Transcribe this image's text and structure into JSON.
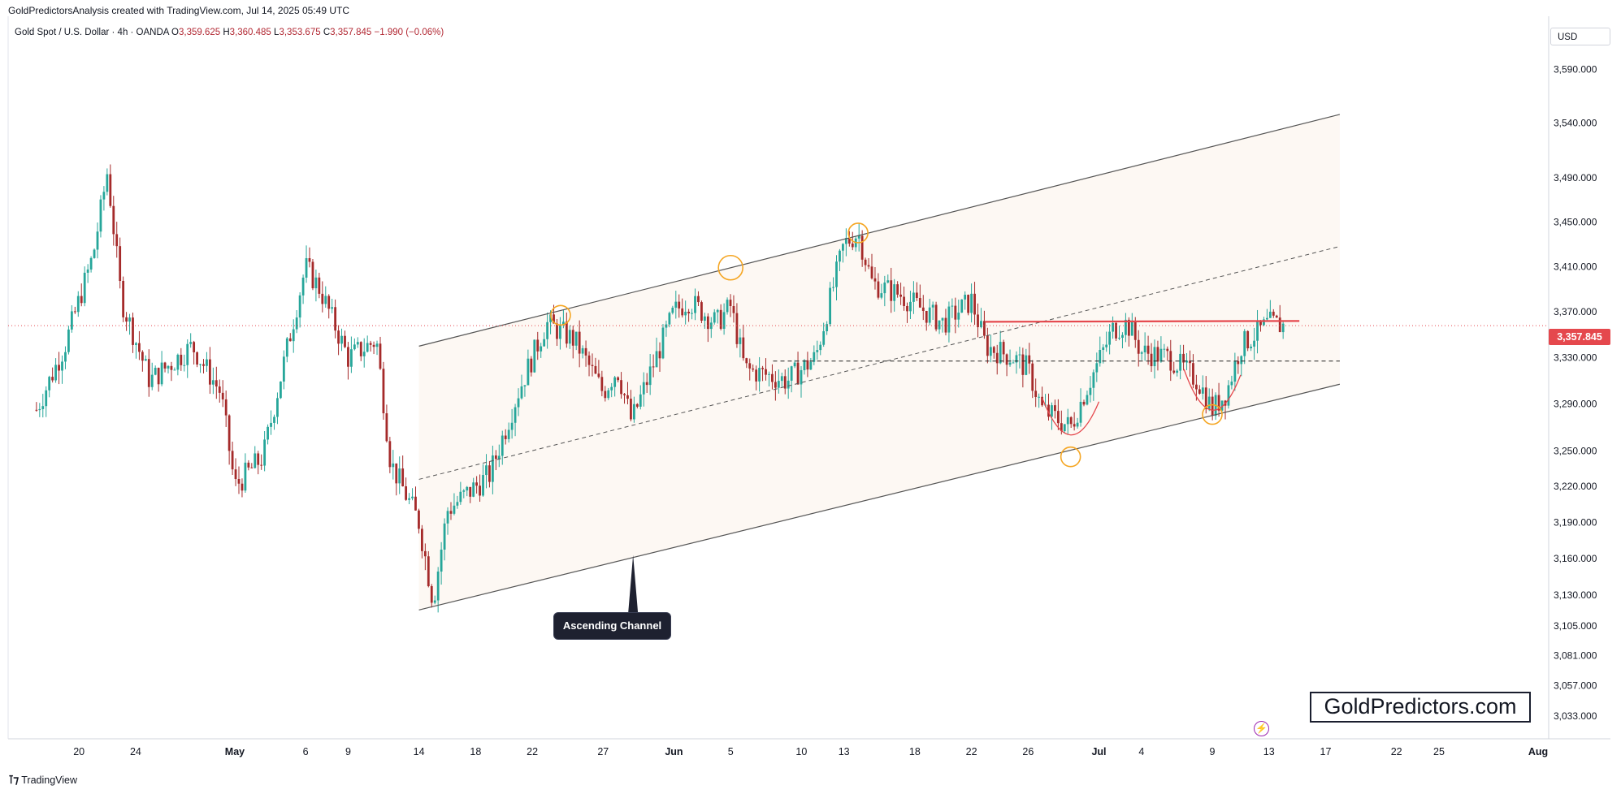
{
  "header": {
    "credit": "GoldPredictorsAnalysis created with TradingView.com, Jul 14, 2025 05:49 UTC",
    "symbol": "Gold Spot / U.S. Dollar · 4h · OANDA",
    "open_label": "O",
    "open": "3,359.625",
    "high_label": "H",
    "high": "3,360.485",
    "low_label": "L",
    "low": "3,353.675",
    "close_label": "C",
    "close": "3,357.845",
    "change": "−1.990 (−0.06%)"
  },
  "currency_button": "USD",
  "last_price": "3,357.845",
  "annotation": {
    "label": "Ascending Channel"
  },
  "watermark": "GoldPredictors.com",
  "brand": "TradingView",
  "colors": {
    "up": "#26a69a",
    "down": "#a52a2a",
    "wick": "#333333",
    "channel": "#555555",
    "circle": "#f5a623",
    "resistance": "#e5484d",
    "cup": "#e5484d",
    "last_price_line": "#e5484d"
  },
  "chart_data": {
    "type": "candlestick",
    "title": "Gold Spot / U.S. Dollar · 4h · OANDA",
    "x_tick_labels": [
      "20",
      "24",
      "May",
      "6",
      "9",
      "14",
      "18",
      "22",
      "27",
      "Jun",
      "5",
      "10",
      "13",
      "18",
      "22",
      "26",
      "Jul",
      "4",
      "9",
      "13",
      "17",
      "22",
      "25",
      "Aug"
    ],
    "y_tick_labels": [
      "3,590.000",
      "3,540.000",
      "3,490.000",
      "3,450.000",
      "3,410.000",
      "3,370.000",
      "3,330.000",
      "3,290.000",
      "3,250.000",
      "3,220.000",
      "3,190.000",
      "3,160.000",
      "3,130.000",
      "3,105.000",
      "3,081.000",
      "3,057.000",
      "3,033.000"
    ],
    "ylim": [
      3015,
      3640
    ],
    "y_scale": "log",
    "last_price": 3357.845,
    "close_path": [
      [
        "Apr 17",
        3285
      ],
      [
        "Apr 19",
        3340
      ],
      [
        "Apr 21",
        3420
      ],
      [
        "Apr 22",
        3495
      ],
      [
        "Apr 23",
        3380
      ],
      [
        "Apr 25",
        3310
      ],
      [
        "Apr 28",
        3340
      ],
      [
        "Apr 30",
        3300
      ],
      [
        "May 1",
        3220
      ],
      [
        "May 3",
        3245
      ],
      [
        "May 6",
        3410
      ],
      [
        "May 7",
        3390
      ],
      [
        "May 9",
        3330
      ],
      [
        "May 11",
        3345
      ],
      [
        "May 12",
        3240
      ],
      [
        "May 14",
        3190
      ],
      [
        "May 15",
        3125
      ],
      [
        "May 16",
        3200
      ],
      [
        "May 19",
        3230
      ],
      [
        "May 21",
        3300
      ],
      [
        "May 23",
        3360
      ],
      [
        "May 25",
        3345
      ],
      [
        "May 27",
        3300
      ],
      [
        "May 28",
        3320
      ],
      [
        "May 29",
        3275
      ],
      [
        "Jun 1",
        3370
      ],
      [
        "Jun 2",
        3380
      ],
      [
        "Jun 4",
        3360
      ],
      [
        "Jun 5",
        3375
      ],
      [
        "Jun 6",
        3320
      ],
      [
        "Jun 9",
        3310
      ],
      [
        "Jun 11",
        3330
      ],
      [
        "Jun 13",
        3430
      ],
      [
        "Jun 14",
        3440
      ],
      [
        "Jun 15",
        3395
      ],
      [
        "Jun 17",
        3385
      ],
      [
        "Jun 20",
        3360
      ],
      [
        "Jun 22",
        3380
      ],
      [
        "Jun 23",
        3340
      ],
      [
        "Jun 25",
        3330
      ],
      [
        "Jun 26",
        3320
      ],
      [
        "Jun 27",
        3285
      ],
      [
        "Jun 29",
        3270
      ],
      [
        "Jun 30",
        3300
      ],
      [
        "Jul 2",
        3355
      ],
      [
        "Jul 3",
        3360
      ],
      [
        "Jul 4",
        3335
      ],
      [
        "Jul 6",
        3330
      ],
      [
        "Jul 8",
        3310
      ],
      [
        "Jul 9",
        3285
      ],
      [
        "Jul 10",
        3300
      ],
      [
        "Jul 11",
        3340
      ],
      [
        "Jul 13",
        3360
      ],
      [
        "Jul 14",
        3357.845
      ]
    ],
    "overlays": {
      "channel_upper": [
        [
          "May 14",
          3340
        ],
        [
          "Jul 18",
          3548
        ]
      ],
      "channel_lower": [
        [
          "May 14",
          3118
        ],
        [
          "Jul 18",
          3307
        ]
      ],
      "channel_mid_dashed": [
        [
          "May 14",
          3226
        ],
        [
          "Jul 18",
          3428
        ]
      ],
      "horizontal_dashed": 3327,
      "resistance": 3362,
      "swing_circles": [
        [
          "May 24",
          3367
        ],
        [
          "Jun 5",
          3409
        ],
        [
          "Jun 14",
          3440
        ],
        [
          "Jun 29",
          3245
        ],
        [
          "Jul 9",
          3281
        ]
      ]
    }
  }
}
